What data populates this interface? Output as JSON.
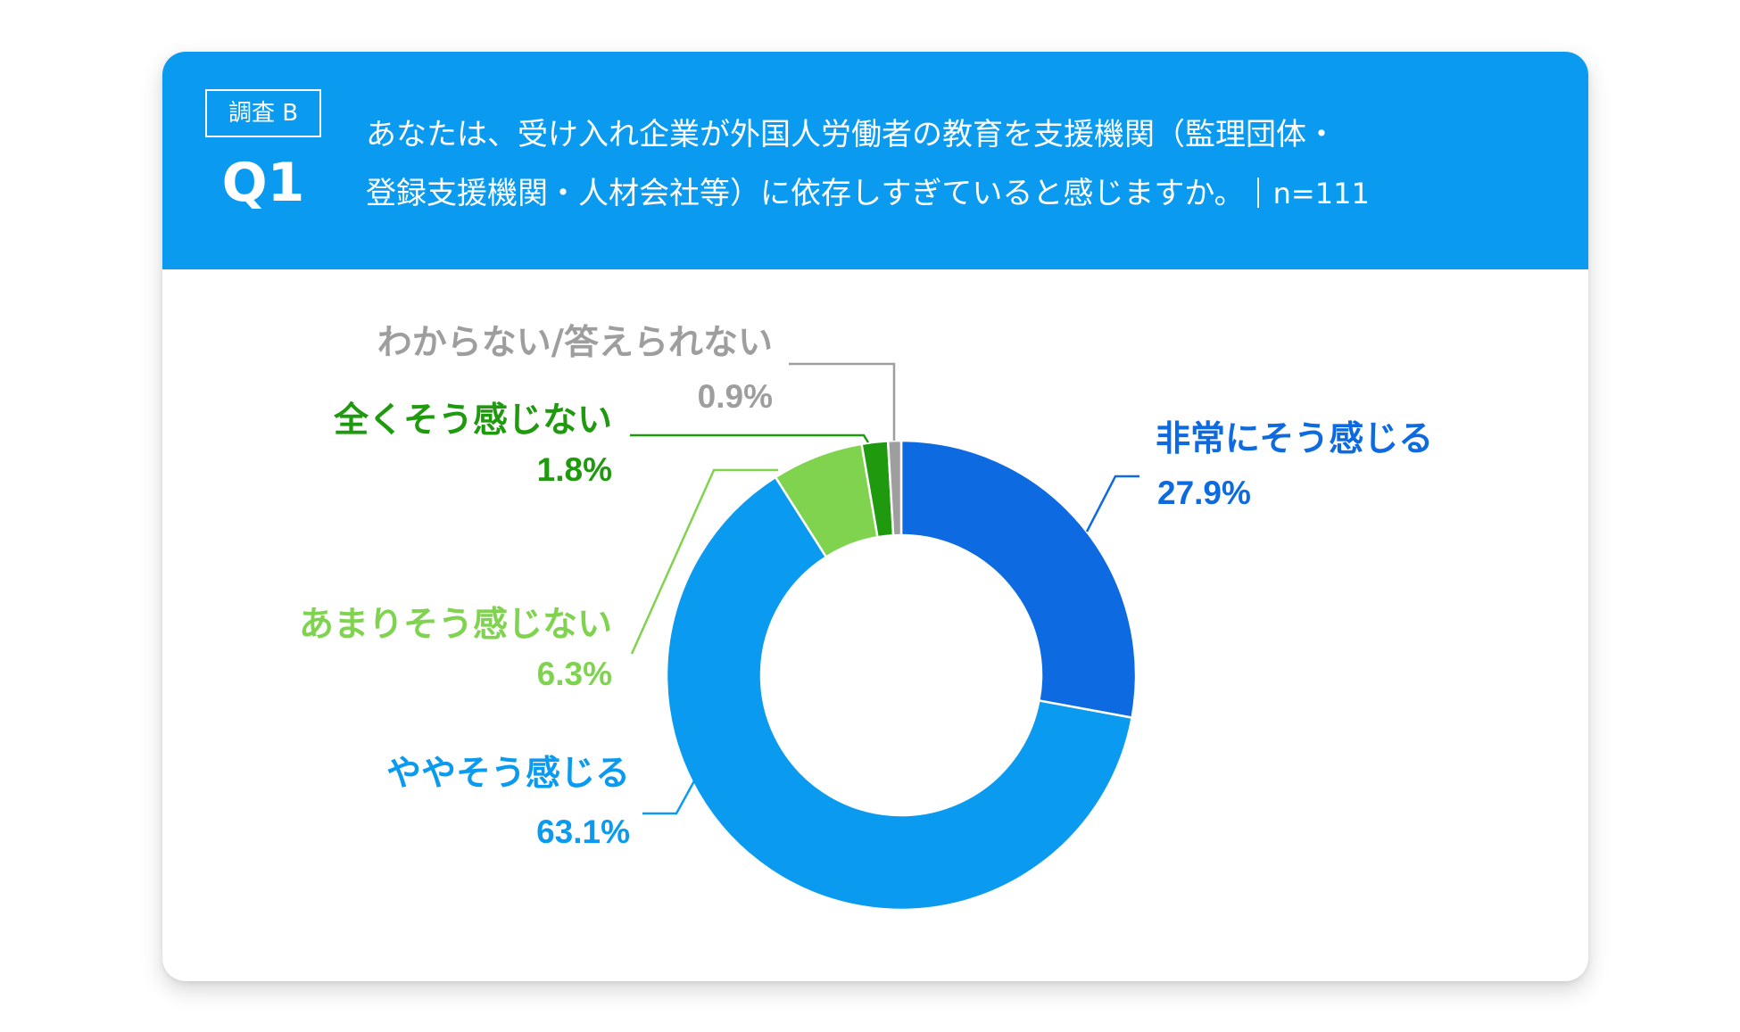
{
  "header": {
    "survey_label": "調査 B",
    "question_number": "Q1",
    "question_line1": "あなたは、受け入れ企業が外国人労働者の教育を支援機関（監理団体・",
    "question_line2": "登録支援機関・人材会社等）に依存しすぎていると感じますか。",
    "sample_size": "n=111"
  },
  "chart_data": {
    "type": "pie",
    "donut": true,
    "categories": [
      "非常にそう感じる",
      "ややそう感じる",
      "あまりそう感じない",
      "全くそう感じない",
      "わからない/答えられない"
    ],
    "values": [
      27.9,
      63.1,
      6.3,
      1.8,
      0.9
    ],
    "value_labels": [
      "27.9%",
      "63.1%",
      "6.3%",
      "1.8%",
      "0.9%"
    ],
    "colors": [
      "#0e6ae0",
      "#0a9bf0",
      "#7fd34e",
      "#1f9a0e",
      "#9e9e9e"
    ],
    "direction": "clockwise",
    "start": "top"
  },
  "colors": {
    "header_bg": "#0a9bf0",
    "card_bg": "#ffffff"
  }
}
